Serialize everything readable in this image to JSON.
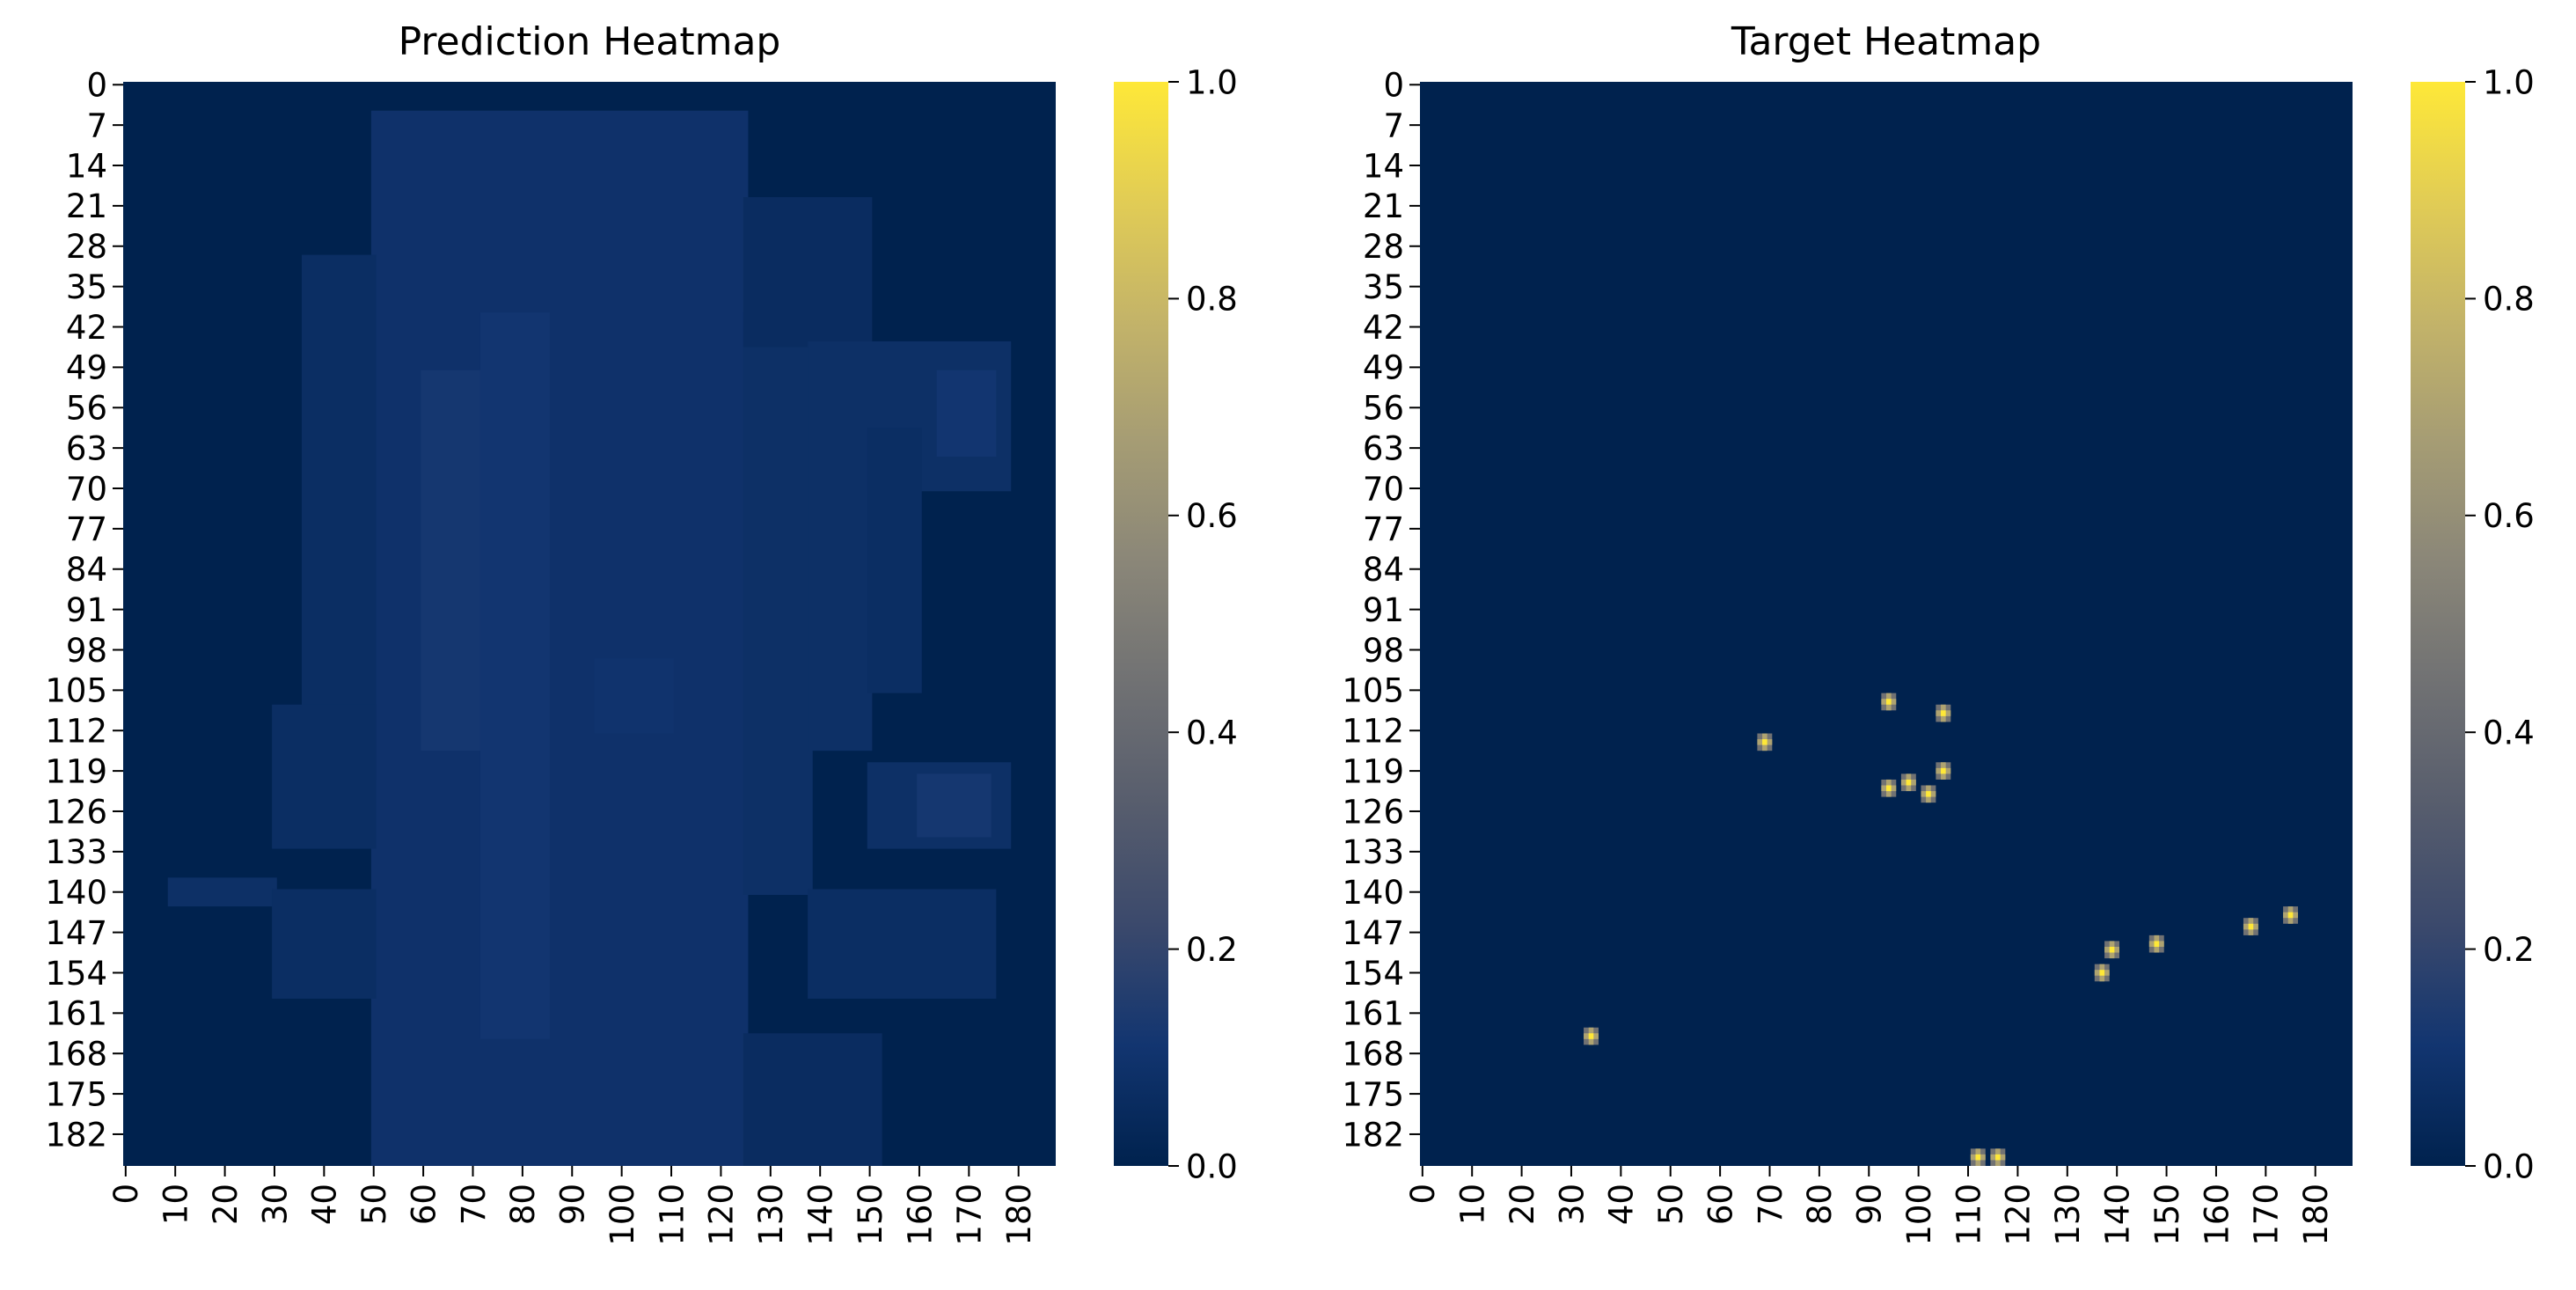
{
  "figure": {
    "colormap": "cividis",
    "colormap_stops": [
      "#00224e",
      "#123570",
      "#3b496c",
      "#575d6d",
      "#707173",
      "#8a8678",
      "#a59c74",
      "#c3b369",
      "#e1cc55",
      "#fee838"
    ]
  },
  "chart_data": [
    {
      "type": "heatmap",
      "title": "Prediction Heatmap",
      "xlabel": "",
      "ylabel": "",
      "grid_size": [
        188,
        188
      ],
      "xticks": [
        "0",
        "10",
        "20",
        "30",
        "40",
        "50",
        "60",
        "70",
        "80",
        "90",
        "100",
        "110",
        "120",
        "130",
        "140",
        "150",
        "160",
        "170",
        "180"
      ],
      "yticks": [
        "0",
        "7",
        "14",
        "21",
        "28",
        "35",
        "42",
        "49",
        "56",
        "63",
        "70",
        "77",
        "84",
        "91",
        "98",
        "105",
        "112",
        "119",
        "126",
        "133",
        "140",
        "147",
        "154",
        "161",
        "168",
        "175",
        "182"
      ],
      "colorbar": {
        "range": [
          0.0,
          1.0
        ],
        "ticks": [
          "0.0",
          "0.2",
          "0.4",
          "0.6",
          "0.8",
          "1.0"
        ]
      },
      "background_value": 0.0,
      "regions": [
        {
          "rows": [
            5,
            187
          ],
          "cols": [
            50,
            125
          ],
          "value": 0.09
        },
        {
          "rows": [
            30,
            120
          ],
          "cols": [
            36,
            50
          ],
          "value": 0.07
        },
        {
          "rows": [
            40,
            140
          ],
          "cols": [
            125,
            138
          ],
          "value": 0.08
        },
        {
          "rows": [
            20,
            45
          ],
          "cols": [
            125,
            150
          ],
          "value": 0.06
        },
        {
          "rows": [
            45,
            115
          ],
          "cols": [
            138,
            150
          ],
          "value": 0.08
        },
        {
          "rows": [
            45,
            70
          ],
          "cols": [
            150,
            178
          ],
          "value": 0.08
        },
        {
          "rows": [
            60,
            105
          ],
          "cols": [
            150,
            160
          ],
          "value": 0.07
        },
        {
          "rows": [
            108,
            132
          ],
          "cols": [
            30,
            50
          ],
          "value": 0.07
        },
        {
          "rows": [
            118,
            132
          ],
          "cols": [
            150,
            178
          ],
          "value": 0.08
        },
        {
          "rows": [
            138,
            142
          ],
          "cols": [
            9,
            30
          ],
          "value": 0.08
        },
        {
          "rows": [
            140,
            158
          ],
          "cols": [
            30,
            50
          ],
          "value": 0.07
        },
        {
          "rows": [
            140,
            158
          ],
          "cols": [
            138,
            175
          ],
          "value": 0.07
        },
        {
          "rows": [
            165,
            187
          ],
          "cols": [
            125,
            152
          ],
          "value": 0.06
        },
        {
          "rows": [
            50,
            115
          ],
          "cols": [
            60,
            72
          ],
          "value": 0.12
        },
        {
          "rows": [
            40,
            165
          ],
          "cols": [
            72,
            85
          ],
          "value": 0.11
        },
        {
          "rows": [
            50,
            64
          ],
          "cols": [
            164,
            175
          ],
          "value": 0.11
        },
        {
          "rows": [
            120,
            130
          ],
          "cols": [
            160,
            174
          ],
          "value": 0.12
        },
        {
          "rows": [
            100,
            112
          ],
          "cols": [
            95,
            110
          ],
          "value": 0.1
        }
      ]
    },
    {
      "type": "heatmap",
      "title": "Target Heatmap",
      "xlabel": "",
      "ylabel": "",
      "grid_size": [
        188,
        188
      ],
      "xticks": [
        "0",
        "10",
        "20",
        "30",
        "40",
        "50",
        "60",
        "70",
        "80",
        "90",
        "100",
        "110",
        "120",
        "130",
        "140",
        "150",
        "160",
        "170",
        "180"
      ],
      "yticks": [
        "0",
        "7",
        "14",
        "21",
        "28",
        "35",
        "42",
        "49",
        "56",
        "63",
        "70",
        "77",
        "84",
        "91",
        "98",
        "105",
        "112",
        "119",
        "126",
        "133",
        "140",
        "147",
        "154",
        "161",
        "168",
        "175",
        "182"
      ],
      "colorbar": {
        "range": [
          0.0,
          1.0
        ],
        "ticks": [
          "0.0",
          "0.2",
          "0.4",
          "0.6",
          "0.8",
          "1.0"
        ]
      },
      "background_value": 0.0,
      "points": [
        {
          "x": 94,
          "y": 107,
          "value": 1.0
        },
        {
          "x": 105,
          "y": 109,
          "value": 1.0
        },
        {
          "x": 69,
          "y": 114,
          "value": 1.0
        },
        {
          "x": 105,
          "y": 119,
          "value": 1.0
        },
        {
          "x": 94,
          "y": 122,
          "value": 1.0
        },
        {
          "x": 98,
          "y": 121,
          "value": 1.0
        },
        {
          "x": 102,
          "y": 123,
          "value": 1.0
        },
        {
          "x": 175,
          "y": 144,
          "value": 1.0
        },
        {
          "x": 167,
          "y": 146,
          "value": 1.0
        },
        {
          "x": 148,
          "y": 149,
          "value": 1.0
        },
        {
          "x": 139,
          "y": 150,
          "value": 1.0
        },
        {
          "x": 137,
          "y": 154,
          "value": 1.0
        },
        {
          "x": 34,
          "y": 165,
          "value": 1.0
        },
        {
          "x": 112,
          "y": 186,
          "value": 1.0
        },
        {
          "x": 116,
          "y": 186,
          "value": 1.0
        }
      ]
    }
  ]
}
